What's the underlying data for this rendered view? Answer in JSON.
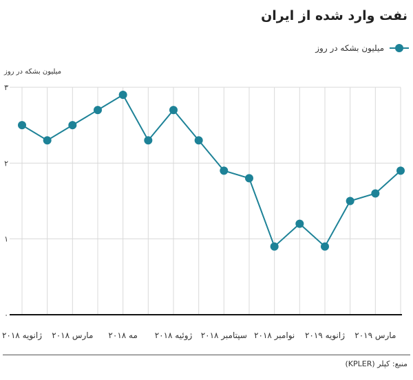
{
  "chart_data": {
    "type": "line",
    "title": "نفت وارد شده از ایران",
    "ylabel": "میلیون بشکه در روز",
    "legend": {
      "placement": "top-right",
      "entries": [
        "میلیون بشکه در روز"
      ]
    },
    "ylim": [
      0,
      3
    ],
    "yticks": [
      {
        "value": 0,
        "label": "۰"
      },
      {
        "value": 1,
        "label": "۱"
      },
      {
        "value": 2,
        "label": "۲"
      },
      {
        "value": 3,
        "label": "۳"
      }
    ],
    "x": [
      "2018-01",
      "2018-02",
      "2018-03",
      "2018-04",
      "2018-05",
      "2018-06",
      "2018-07",
      "2018-08",
      "2018-09",
      "2018-10",
      "2018-11",
      "2018-12",
      "2019-01",
      "2019-02",
      "2019-03",
      "2019-04"
    ],
    "xtick_labels": [
      {
        "x": "2018-01",
        "label": "ژانویه ۲۰۱۸"
      },
      {
        "x": "2018-03",
        "label": "مارس ۲۰۱۸"
      },
      {
        "x": "2018-05",
        "label": "مه ۲۰۱۸"
      },
      {
        "x": "2018-07",
        "label": "ژوئیه ۲۰۱۸"
      },
      {
        "x": "2018-09",
        "label": "سپتامبر ۲۰۱۸"
      },
      {
        "x": "2018-11",
        "label": "نوامبر ۲۰۱۸"
      },
      {
        "x": "2019-01",
        "label": "ژانویه ۲۰۱۹"
      },
      {
        "x": "2019-03",
        "label": "مارس ۲۰۱۹"
      }
    ],
    "series": [
      {
        "name": "میلیون بشکه در روز",
        "values": [
          2.5,
          2.3,
          2.5,
          2.7,
          2.9,
          2.3,
          2.7,
          2.3,
          1.9,
          1.8,
          0.9,
          1.2,
          0.9,
          1.5,
          1.6,
          1.9
        ]
      }
    ],
    "grid": true,
    "colors": {
      "series": "#1d8297",
      "grid": "#d9d9d9",
      "axis": "#111111"
    }
  },
  "source": "منبع: کپلر (KPLER)"
}
